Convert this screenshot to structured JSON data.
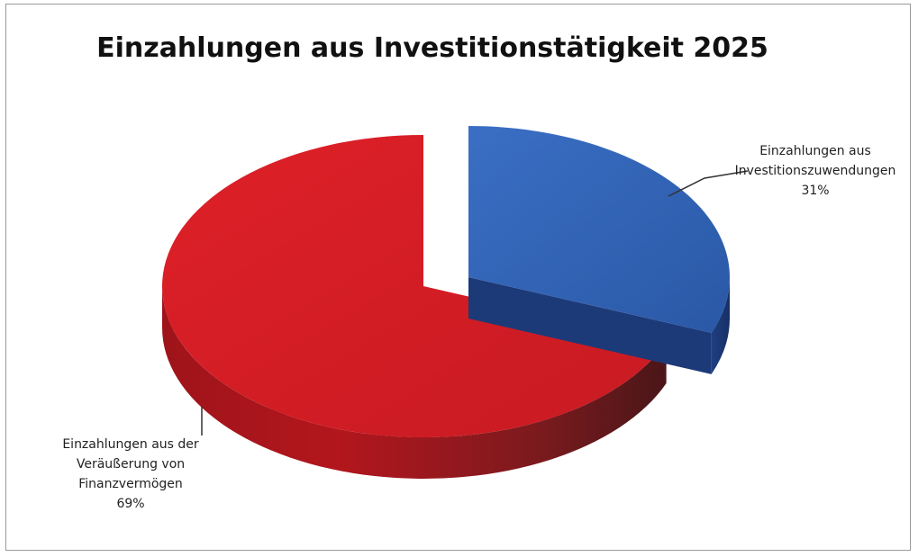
{
  "chart_data": {
    "type": "pie",
    "style": "3d-exploded",
    "title": "Einzahlungen aus Investitionstätigkeit 2025",
    "slices": [
      {
        "label_lines": [
          "Einzahlungen aus",
          "Investitionszuwendungen",
          "31%"
        ],
        "value": 31,
        "color": "#3264b4"
      },
      {
        "label_lines": [
          "Einzahlungen aus der",
          "Veräußerung von",
          "Finanzvermögen",
          "69%"
        ],
        "value": 69,
        "color": "#d81c24"
      }
    ],
    "legend": "none"
  }
}
